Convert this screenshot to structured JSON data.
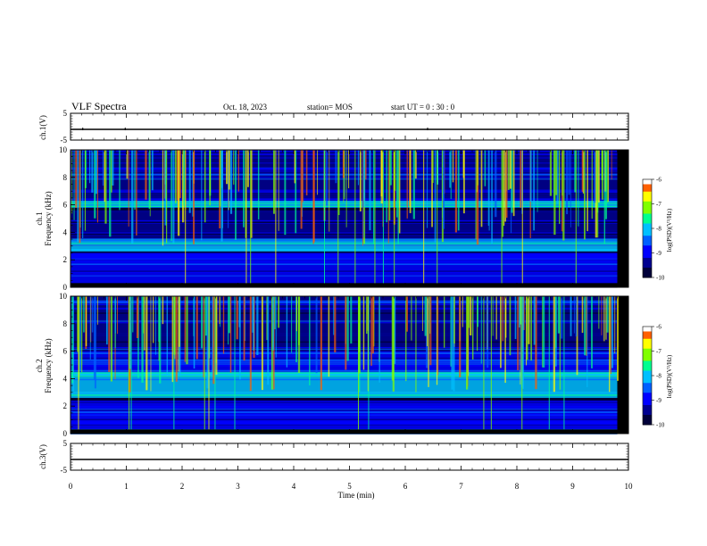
{
  "header": {
    "title": "VLF Spectra",
    "date": "Oct. 18, 2023",
    "station": "station= MOS",
    "start": "start  UT  =   0 : 30 : 0"
  },
  "colorbar": {
    "label": "log(PSD)(V²/Hz)",
    "ticks": [
      "-6",
      "-7",
      "-8",
      "-9",
      "-10"
    ],
    "colors": [
      "#000066",
      "#0000ff",
      "#0080ff",
      "#00e0ff",
      "#00ff80",
      "#80ff00",
      "#ffff00",
      "#ff8000",
      "#ff0000",
      "#ffffff"
    ]
  },
  "chart_data": [
    {
      "type": "line",
      "ylabel": "ch.1(V)",
      "ylim": [
        -5,
        5
      ],
      "yticks": [
        "5",
        "-5"
      ],
      "x": [
        0,
        10
      ],
      "values": [
        -1,
        -1
      ]
    },
    {
      "type": "heatmap",
      "ylabel": "ch.1\nFrequency (kHz)",
      "ylabel_lines": [
        "ch.1",
        "Frequency (kHz)"
      ],
      "ylim": [
        0,
        10
      ],
      "yticks": [
        "0",
        "2",
        "4",
        "6",
        "8",
        "10"
      ],
      "xlim": [
        0,
        9.8
      ],
      "bands_khz": [
        {
          "from": 0.3,
          "to": 2.4,
          "level": 0.25
        },
        {
          "from": 2.6,
          "to": 3.5,
          "level": 0.5
        },
        {
          "from": 3.5,
          "to": 5.6,
          "level": 0.15
        },
        {
          "from": 5.8,
          "to": 6.3,
          "level": 0.45
        },
        {
          "from": 6.3,
          "to": 10,
          "level": 0.2
        }
      ]
    },
    {
      "type": "heatmap",
      "ylabel": "ch.2\nFrequency (kHz)",
      "ylabel_lines": [
        "ch.2",
        "Frequency (kHz)"
      ],
      "ylim": [
        0,
        10
      ],
      "yticks": [
        "0",
        "2",
        "4",
        "6",
        "8",
        "10"
      ],
      "xlim": [
        0,
        9.8
      ],
      "bands_khz": [
        {
          "from": 0.3,
          "to": 2.4,
          "level": 0.25
        },
        {
          "from": 2.6,
          "to": 4.5,
          "level": 0.5
        },
        {
          "from": 4.5,
          "to": 6.0,
          "level": 0.25
        },
        {
          "from": 6.0,
          "to": 10,
          "level": 0.15
        }
      ]
    },
    {
      "type": "line",
      "ylabel": "ch.3(V)",
      "ylim": [
        -5,
        5
      ],
      "yticks": [
        "5",
        "-5"
      ],
      "x": [
        0,
        10
      ],
      "values": [
        -1,
        -1
      ]
    }
  ],
  "xaxis": {
    "label": "Time (min)",
    "ticks": [
      "0",
      "1",
      "2",
      "3",
      "4",
      "5",
      "6",
      "7",
      "8",
      "9",
      "10"
    ],
    "xlim": [
      0,
      10
    ]
  }
}
